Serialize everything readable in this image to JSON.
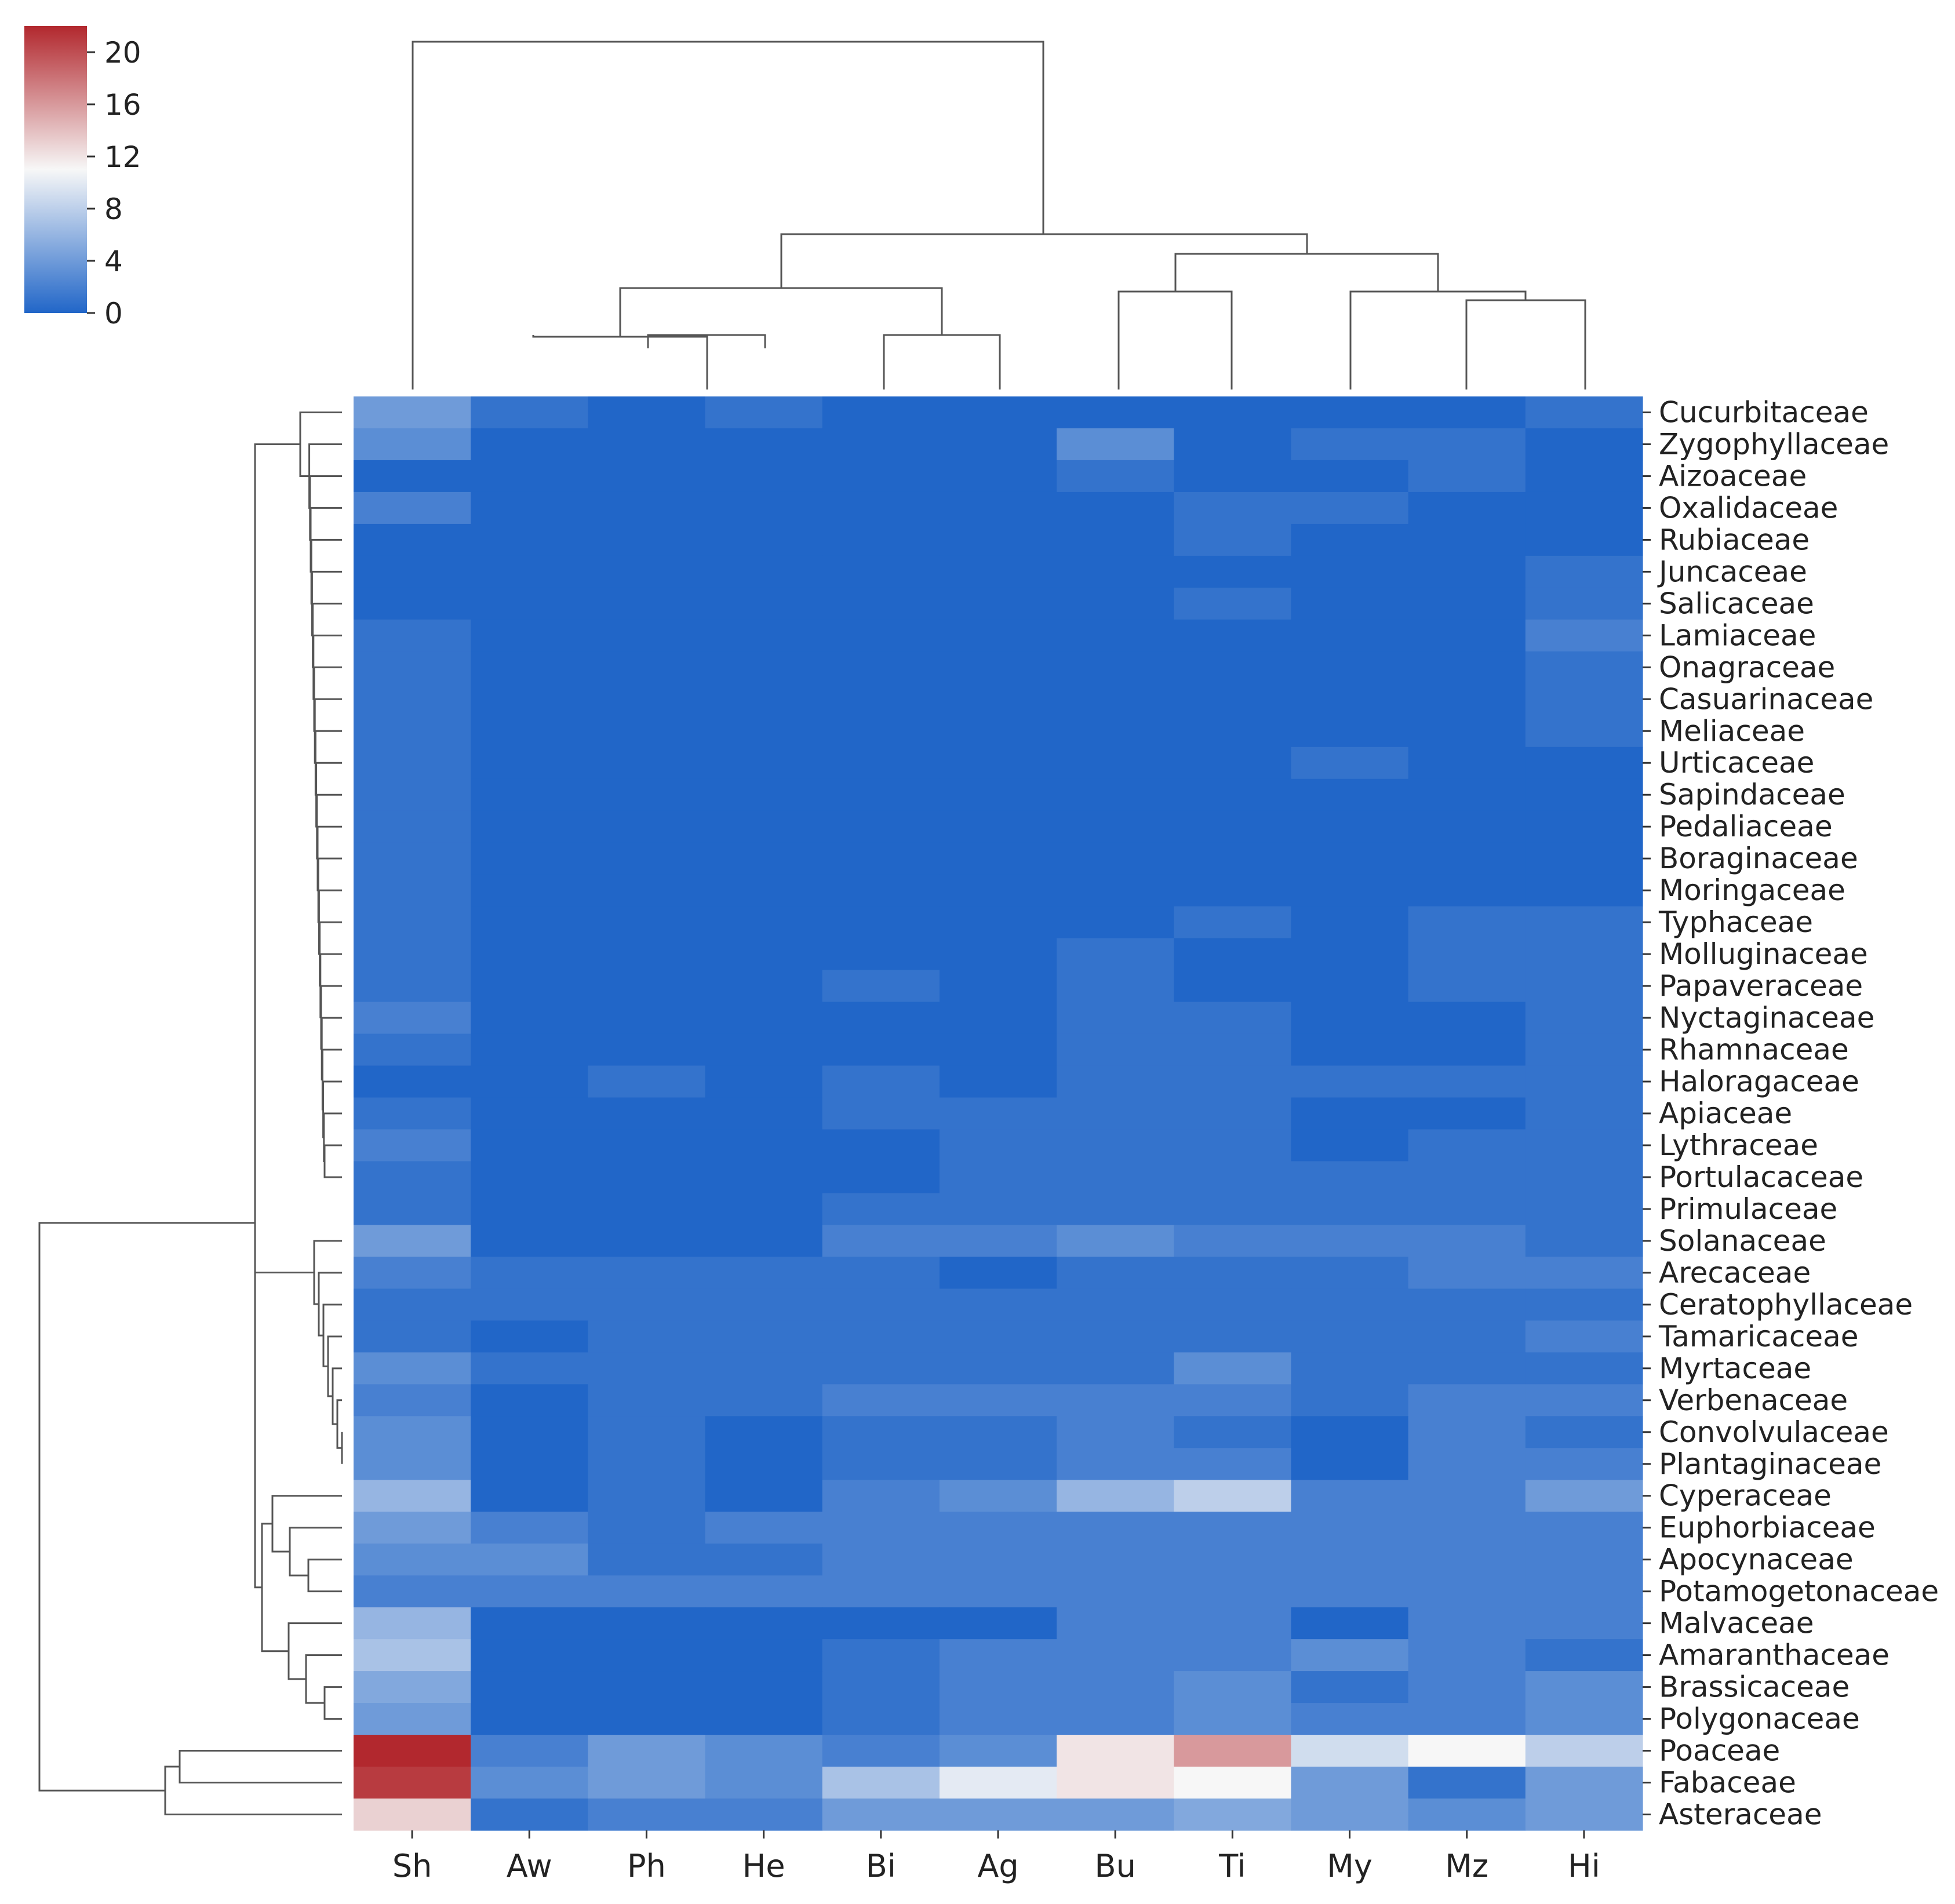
{
  "chart_data": {
    "type": "heatmap",
    "title": "",
    "xlabel": "",
    "ylabel": "",
    "columns": [
      "Sh",
      "Aw",
      "Ph",
      "He",
      "Bi",
      "Ag",
      "Bu",
      "Ti",
      "My",
      "Mz",
      "Hi"
    ],
    "rows": [
      "Cucurbitaceae",
      "Zygophyllaceae",
      "Aizoaceae",
      "Oxalidaceae",
      "Rubiaceae",
      "Juncaceae",
      "Salicaceae",
      "Lamiaceae",
      "Onagraceae",
      "Casuarinaceae",
      "Meliaceae",
      "Urticaceae",
      "Sapindaceae",
      "Pedaliaceae",
      "Boraginaceae",
      "Moringaceae",
      "Typhaceae",
      "Molluginaceae",
      "Papaveraceae",
      "Nyctaginaceae",
      "Rhamnaceae",
      "Haloragaceae",
      "Apiaceae",
      "Lythraceae",
      "Portulacaceae",
      "Primulaceae",
      "Solanaceae",
      "Arecaceae",
      "Ceratophyllaceae",
      "Tamaricaceae",
      "Myrtaceae",
      "Verbenaceae",
      "Convolvulaceae",
      "Plantaginaceae",
      "Cyperaceae",
      "Euphorbiaceae",
      "Apocynaceae",
      "Potamogetonaceae",
      "Malvaceae",
      "Amaranthaceae",
      "Brassicaceae",
      "Polygonaceae",
      "Poaceae",
      "Fabaceae",
      "Asteraceae"
    ],
    "values": [
      [
        4,
        1,
        0,
        1,
        0,
        0,
        0,
        0,
        0,
        0,
        1
      ],
      [
        3,
        0,
        0,
        0,
        0,
        0,
        3,
        0,
        1,
        1,
        0
      ],
      [
        0,
        0,
        0,
        0,
        0,
        0,
        1,
        0,
        0,
        1,
        0
      ],
      [
        2,
        0,
        0,
        0,
        0,
        0,
        0,
        1,
        1,
        0,
        0
      ],
      [
        0,
        0,
        0,
        0,
        0,
        0,
        0,
        1,
        0,
        0,
        0
      ],
      [
        0,
        0,
        0,
        0,
        0,
        0,
        0,
        0,
        0,
        0,
        1
      ],
      [
        0,
        0,
        0,
        0,
        0,
        0,
        0,
        1,
        0,
        0,
        1
      ],
      [
        1,
        0,
        0,
        0,
        0,
        0,
        0,
        0,
        0,
        0,
        2
      ],
      [
        1,
        0,
        0,
        0,
        0,
        0,
        0,
        0,
        0,
        0,
        1
      ],
      [
        1,
        0,
        0,
        0,
        0,
        0,
        0,
        0,
        0,
        0,
        1
      ],
      [
        1,
        0,
        0,
        0,
        0,
        0,
        0,
        0,
        0,
        0,
        1
      ],
      [
        1,
        0,
        0,
        0,
        0,
        0,
        0,
        0,
        1,
        0,
        0
      ],
      [
        1,
        0,
        0,
        0,
        0,
        0,
        0,
        0,
        0,
        0,
        0
      ],
      [
        1,
        0,
        0,
        0,
        0,
        0,
        0,
        0,
        0,
        0,
        0
      ],
      [
        1,
        0,
        0,
        0,
        0,
        0,
        0,
        0,
        0,
        0,
        0
      ],
      [
        1,
        0,
        0,
        0,
        0,
        0,
        0,
        0,
        0,
        0,
        0
      ],
      [
        1,
        0,
        0,
        0,
        0,
        0,
        0,
        1,
        0,
        1,
        1
      ],
      [
        1,
        0,
        0,
        0,
        0,
        0,
        1,
        0,
        0,
        1,
        1
      ],
      [
        1,
        0,
        0,
        0,
        1,
        0,
        1,
        0,
        0,
        1,
        1
      ],
      [
        2,
        0,
        0,
        0,
        0,
        0,
        1,
        1,
        0,
        0,
        1
      ],
      [
        1,
        0,
        0,
        0,
        0,
        0,
        1,
        1,
        0,
        0,
        1
      ],
      [
        0,
        0,
        1,
        0,
        1,
        0,
        1,
        1,
        1,
        1,
        1
      ],
      [
        1,
        0,
        0,
        0,
        1,
        1,
        1,
        1,
        0,
        0,
        1
      ],
      [
        2,
        0,
        0,
        0,
        0,
        1,
        1,
        1,
        0,
        1,
        1
      ],
      [
        1,
        0,
        0,
        0,
        0,
        1,
        1,
        1,
        1,
        1,
        1
      ],
      [
        1,
        0,
        0,
        0,
        1,
        1,
        1,
        1,
        1,
        1,
        1
      ],
      [
        4,
        0,
        0,
        0,
        2,
        2,
        3,
        2,
        2,
        2,
        1
      ],
      [
        2,
        1,
        1,
        1,
        1,
        0,
        1,
        1,
        1,
        2,
        2
      ],
      [
        1,
        1,
        1,
        1,
        1,
        1,
        1,
        1,
        1,
        1,
        1
      ],
      [
        1,
        0,
        1,
        1,
        1,
        1,
        1,
        1,
        1,
        1,
        2
      ],
      [
        3,
        1,
        1,
        1,
        1,
        1,
        1,
        3,
        1,
        1,
        1
      ],
      [
        2,
        0,
        1,
        1,
        2,
        2,
        2,
        2,
        1,
        2,
        2
      ],
      [
        3,
        0,
        1,
        0,
        1,
        1,
        2,
        1,
        0,
        2,
        1
      ],
      [
        3,
        0,
        1,
        0,
        1,
        1,
        2,
        2,
        0,
        2,
        2
      ],
      [
        6,
        0,
        1,
        0,
        2,
        3,
        6,
        8,
        2,
        2,
        4
      ],
      [
        4,
        2,
        1,
        2,
        2,
        2,
        2,
        2,
        2,
        2,
        2
      ],
      [
        3,
        3,
        1,
        1,
        2,
        2,
        2,
        2,
        2,
        2,
        2
      ],
      [
        2,
        2,
        2,
        2,
        2,
        2,
        2,
        2,
        2,
        2,
        2
      ],
      [
        6,
        0,
        0,
        0,
        0,
        0,
        2,
        2,
        0,
        2,
        2
      ],
      [
        7,
        0,
        0,
        0,
        1,
        2,
        2,
        2,
        3,
        2,
        1
      ],
      [
        5,
        0,
        0,
        0,
        1,
        2,
        2,
        3,
        1,
        2,
        3
      ],
      [
        4,
        0,
        0,
        0,
        1,
        2,
        2,
        3,
        2,
        2,
        3
      ],
      [
        22,
        2,
        4,
        3,
        2,
        3,
        12,
        16,
        9,
        11,
        8
      ],
      [
        21,
        3,
        4,
        3,
        7,
        10,
        12,
        11,
        4,
        1,
        4
      ],
      [
        13,
        1,
        2,
        2,
        4,
        4,
        4,
        5,
        4,
        3,
        4
      ]
    ],
    "colorbar": {
      "min": 0,
      "max": 22,
      "ticks": [
        0,
        4,
        8,
        12,
        16,
        20
      ],
      "colors": [
        "#2166c8",
        "#f7f7f7",
        "#b2282e"
      ],
      "placement": "top-left"
    },
    "dendrograms": [
      "top",
      "left"
    ],
    "grid": false
  }
}
